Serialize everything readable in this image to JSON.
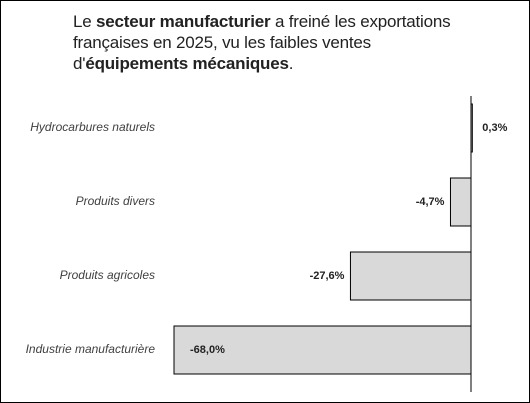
{
  "chart_data": {
    "type": "hbar",
    "title": [
      "Le ",
      "secteur manufacturier",
      " a freiné les exportations françaises en 2025, vu les faibles ventes d'",
      "équipements mécaniques",
      "."
    ],
    "title_bold": [
      false,
      true,
      false,
      true,
      false
    ],
    "categories": [
      "Hydrocarbures naturels",
      "Produits divers",
      "Produits agricoles",
      "Industrie manufacturière"
    ],
    "values": [
      0.3,
      -4.7,
      -27.6,
      -68.0
    ],
    "value_labels": [
      "0,3%",
      "-4,7%",
      "-27,6%",
      "-68,0%"
    ],
    "color": "#d9d9d9"
  }
}
